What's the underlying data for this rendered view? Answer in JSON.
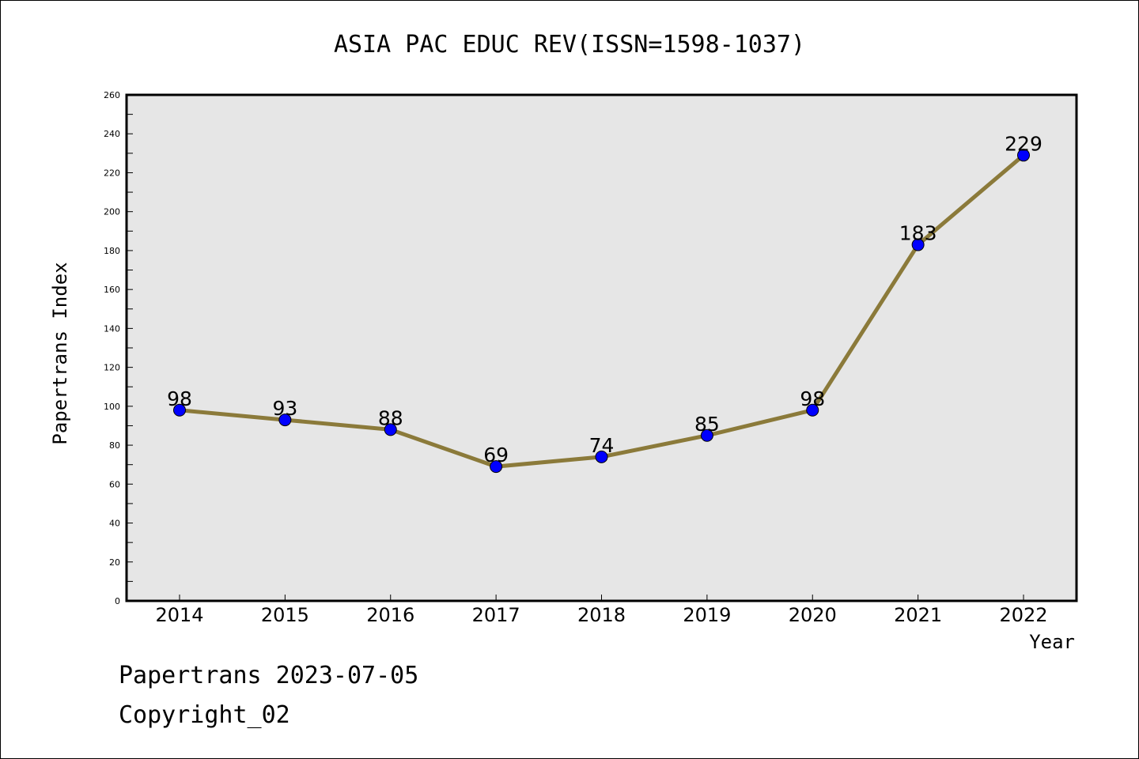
{
  "footer": {
    "line1": "Papertrans 2023-07-05",
    "line2": "Copyright_02"
  },
  "chart_data": {
    "type": "line",
    "title": "ASIA PAC EDUC REV(ISSN=1598-1037)",
    "xlabel": "Year",
    "ylabel": "Papertrans Index",
    "categories": [
      "2014",
      "2015",
      "2016",
      "2017",
      "2018",
      "2019",
      "2020",
      "2021",
      "2022"
    ],
    "values": [
      98,
      93,
      88,
      69,
      74,
      85,
      98,
      183,
      229
    ],
    "ylim": [
      0,
      260
    ],
    "yticks": [
      0,
      20,
      40,
      60,
      80,
      100,
      120,
      140,
      160,
      180,
      200,
      220,
      240,
      260
    ],
    "grid": false,
    "data_labels": true,
    "colors": {
      "line": "#8b7a3a",
      "marker": "#0000ff",
      "plot_bg": "#e6e6e6"
    }
  }
}
